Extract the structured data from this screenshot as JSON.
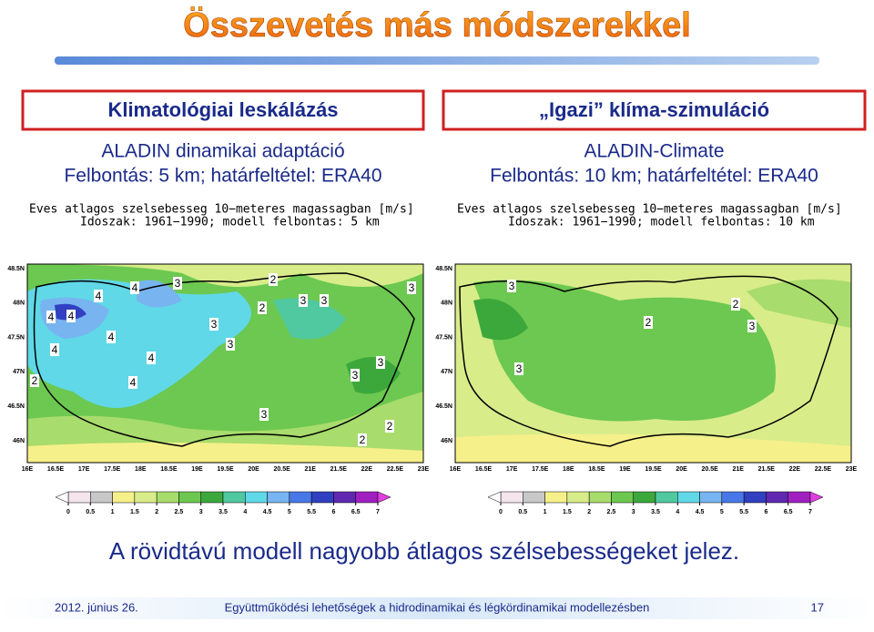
{
  "title": "Összevetés más módszerekkel",
  "panels": [
    {
      "header": "Klimatológiai leskálázás",
      "lines": [
        "ALADIN dinamikai adaptáció",
        "Felbontás: 5 km; határfeltétel: ERA40"
      ],
      "map_title": [
        "Eves atlagos szelsebesseg 10−meteres magassagban [m/s]",
        "Idoszak: 1961−1990; modell felbontas: 5 km"
      ],
      "contour_labels": [
        4,
        3,
        4,
        2,
        2,
        3,
        3,
        3,
        4,
        4,
        3,
        4,
        3,
        4,
        4,
        3,
        2,
        4,
        3,
        3,
        2,
        2
      ]
    },
    {
      "header": "„Igazi” klíma-szimuláció",
      "lines": [
        "ALADIN-Climate",
        "Felbontás: 10 km; határfeltétel: ERA40"
      ],
      "map_title": [
        "Eves atlagos szelsebesseg 10−meteres magassagban [m/s]",
        "Idoszak: 1961−1990; modell felbontas: 10 km"
      ],
      "contour_labels": [
        3,
        2,
        2,
        3,
        3
      ]
    }
  ],
  "lat_labels": [
    "48.5N",
    "48N",
    "47.5N",
    "47N",
    "46.5N",
    "46N"
  ],
  "lon_labels": [
    "16E",
    "16.5E",
    "17E",
    "17.5E",
    "18E",
    "18.5E",
    "19E",
    "19.5E",
    "20E",
    "20.5E",
    "21E",
    "21.5E",
    "22E",
    "22.5E",
    "23E"
  ],
  "colorbar": {
    "ticks": [
      0,
      0.5,
      1,
      1.5,
      2,
      2.5,
      3,
      3.5,
      4,
      4.5,
      5,
      5.5,
      6,
      6.5,
      7
    ],
    "colors": [
      "#f4e4ec",
      "#c8c8c8",
      "#f6f08a",
      "#d8ec8a",
      "#a8dc6c",
      "#6cc850",
      "#3ca83c",
      "#50c8a0",
      "#60d8e8",
      "#78b4f0",
      "#4878e8",
      "#3040c0",
      "#6028b0",
      "#a020c0",
      "#e040e0"
    ]
  },
  "conclusion": "A rövidtávú modell nagyobb átlagos szélsebességeket jelez.",
  "footer": {
    "date": "2012. június 26.",
    "text": "Együttműködési lehetőségek a hidrodinamikai és légkördinamikai modellezésben",
    "page": "17"
  }
}
